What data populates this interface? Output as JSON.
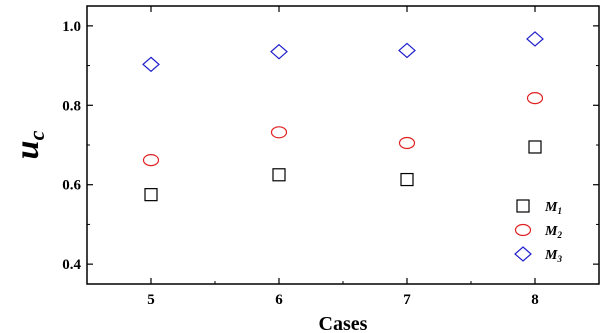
{
  "chart_data": {
    "type": "scatter",
    "title": "",
    "xlabel": "Cases",
    "ylabel_main": "u",
    "ylabel_sub": "c",
    "xlim": [
      4.5,
      8.5
    ],
    "ylim": [
      0.35,
      1.05
    ],
    "xticks": [
      5,
      6,
      7,
      8
    ],
    "yticks": [
      0.4,
      0.6,
      0.8,
      1.0
    ],
    "xtick_labels": [
      "5",
      "6",
      "7",
      "8"
    ],
    "ytick_labels": [
      "0.4",
      "0.6",
      "0.8",
      "1.0"
    ],
    "grid": false,
    "legend_position": "bottom-right",
    "series": [
      {
        "name_main": "M",
        "name_sub": "1",
        "marker": "square",
        "color": "#000000",
        "x": [
          5,
          6,
          7,
          8
        ],
        "y": [
          0.575,
          0.625,
          0.613,
          0.695
        ]
      },
      {
        "name_main": "M",
        "name_sub": "2",
        "marker": "circle",
        "color": "#e02020",
        "x": [
          5,
          6,
          7,
          8
        ],
        "y": [
          0.662,
          0.732,
          0.705,
          0.818
        ]
      },
      {
        "name_main": "M",
        "name_sub": "3",
        "marker": "diamond",
        "color": "#1f1fcc",
        "x": [
          5,
          6,
          7,
          8
        ],
        "y": [
          0.903,
          0.935,
          0.938,
          0.967
        ]
      }
    ]
  }
}
